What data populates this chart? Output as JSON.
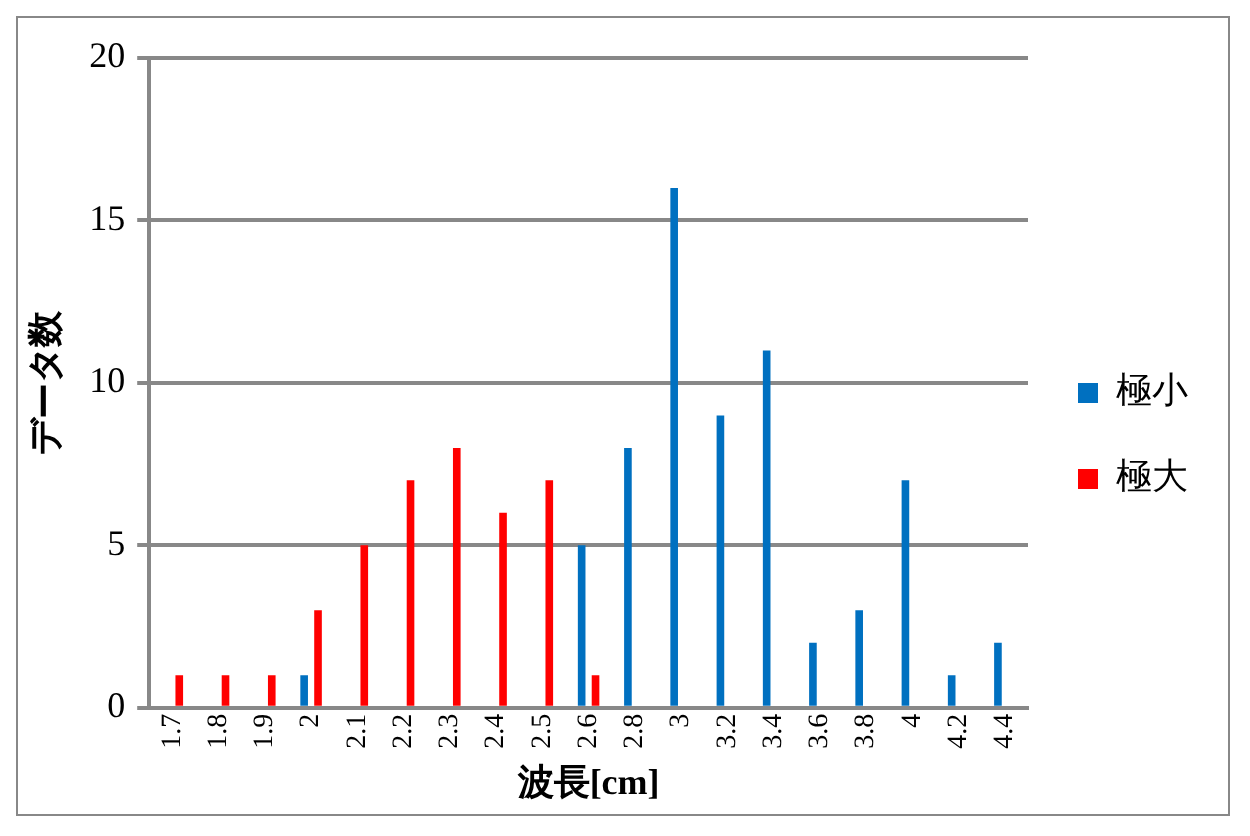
{
  "chart_data": {
    "type": "bar",
    "xlabel": "波長[cm]",
    "ylabel": "データ数",
    "categories": [
      "1.7",
      "1.8",
      "1.9",
      "2",
      "2.1",
      "2.2",
      "2.3",
      "2.4",
      "2.5",
      "2.6",
      "2.8",
      "3",
      "3.2",
      "3.4",
      "3.6",
      "3.8",
      "4",
      "4.2",
      "4.4"
    ],
    "series": [
      {
        "name": "極小",
        "color": "#0070c0",
        "values": [
          null,
          null,
          null,
          1,
          null,
          null,
          null,
          null,
          null,
          5,
          8,
          16,
          9,
          11,
          2,
          3,
          7,
          1,
          2
        ]
      },
      {
        "name": "極大",
        "color": "#ff0000",
        "values": [
          1,
          1,
          1,
          3,
          5,
          7,
          8,
          6,
          7,
          1,
          null,
          null,
          null,
          null,
          null,
          null,
          null,
          null,
          null
        ]
      }
    ],
    "ylim": [
      0,
      20
    ],
    "yticks": [
      0,
      5,
      10,
      15,
      20
    ],
    "grid": "y",
    "legend": "right"
  }
}
